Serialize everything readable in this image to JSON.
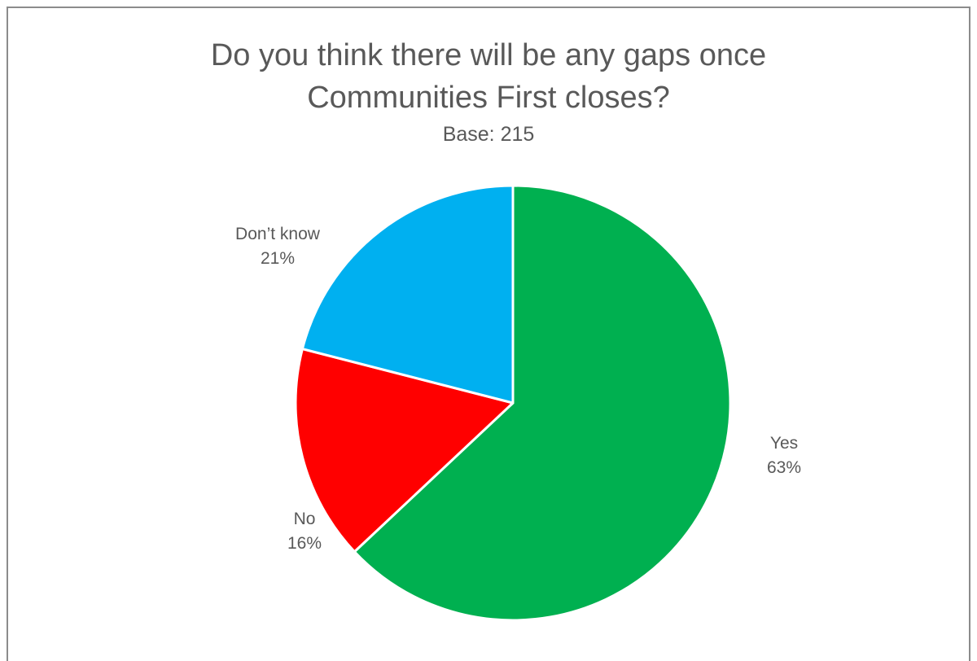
{
  "chart_data": {
    "type": "pie",
    "title_lines": [
      "Do you think there will be any gaps once",
      "Communities First closes?"
    ],
    "subtitle": "Base: 215",
    "start_angle_deg": 0,
    "direction": "clockwise",
    "slices": [
      {
        "label": "Yes",
        "value": 63,
        "value_label": "63%",
        "color": "#00b050"
      },
      {
        "label": "No",
        "value": 16,
        "value_label": "16%",
        "color": "#ff0000"
      },
      {
        "label": "Don’t know",
        "value": 21,
        "value_label": "21%",
        "color": "#00b0f0"
      }
    ],
    "legend": "none"
  }
}
